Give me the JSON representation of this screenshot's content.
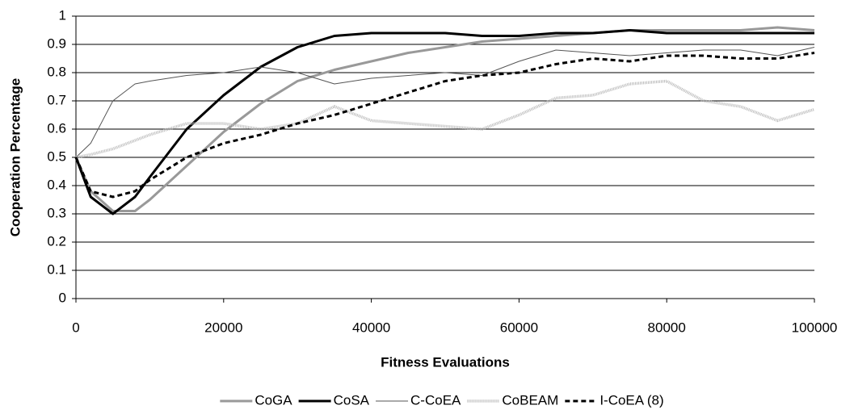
{
  "chart_data": {
    "type": "line",
    "xlabel": "Fitness Evaluations",
    "ylabel": "Cooperation Percentage",
    "x": [
      0,
      2000,
      5000,
      8000,
      10000,
      15000,
      20000,
      25000,
      30000,
      35000,
      40000,
      45000,
      50000,
      55000,
      60000,
      65000,
      70000,
      75000,
      80000,
      85000,
      90000,
      95000,
      100000
    ],
    "series": [
      {
        "name": "CoGA",
        "color": "#999999",
        "values": [
          0.5,
          0.38,
          0.31,
          0.31,
          0.35,
          0.47,
          0.59,
          0.69,
          0.77,
          0.81,
          0.84,
          0.87,
          0.89,
          0.91,
          0.92,
          0.93,
          0.94,
          0.95,
          0.95,
          0.95,
          0.95,
          0.96,
          0.95
        ]
      },
      {
        "name": "CoSA",
        "color": "#000000",
        "values": [
          0.5,
          0.36,
          0.3,
          0.36,
          0.43,
          0.6,
          0.72,
          0.82,
          0.89,
          0.93,
          0.94,
          0.94,
          0.94,
          0.93,
          0.93,
          0.94,
          0.94,
          0.95,
          0.94,
          0.94,
          0.94,
          0.94,
          0.94
        ]
      },
      {
        "name": "C-CoEA",
        "color": "#555555",
        "values": [
          0.5,
          0.55,
          0.7,
          0.76,
          0.77,
          0.79,
          0.8,
          0.82,
          0.8,
          0.76,
          0.78,
          0.79,
          0.8,
          0.79,
          0.84,
          0.88,
          0.87,
          0.86,
          0.87,
          0.88,
          0.88,
          0.86,
          0.89
        ]
      },
      {
        "name": "CoBEAM",
        "color": "#bbbbbb",
        "values": [
          0.5,
          0.51,
          0.53,
          0.56,
          0.58,
          0.62,
          0.62,
          0.6,
          0.62,
          0.68,
          0.63,
          0.62,
          0.61,
          0.6,
          0.65,
          0.71,
          0.72,
          0.76,
          0.77,
          0.7,
          0.68,
          0.63,
          0.67
        ]
      },
      {
        "name": "I-CoEA (8)",
        "color": "#000000",
        "values": [
          0.5,
          0.38,
          0.36,
          0.38,
          0.42,
          0.5,
          0.55,
          0.58,
          0.62,
          0.65,
          0.69,
          0.73,
          0.77,
          0.79,
          0.8,
          0.83,
          0.85,
          0.84,
          0.86,
          0.86,
          0.85,
          0.85,
          0.87
        ]
      }
    ],
    "xlim": [
      0,
      100000
    ],
    "xticks": [
      0,
      20000,
      40000,
      60000,
      80000,
      100000
    ],
    "ylim": [
      0,
      1
    ],
    "yticks": [
      0,
      0.1,
      0.2,
      0.3,
      0.4,
      0.5,
      0.6,
      0.7,
      0.8,
      0.9,
      1
    ],
    "grid": true,
    "legend": "bottom"
  }
}
